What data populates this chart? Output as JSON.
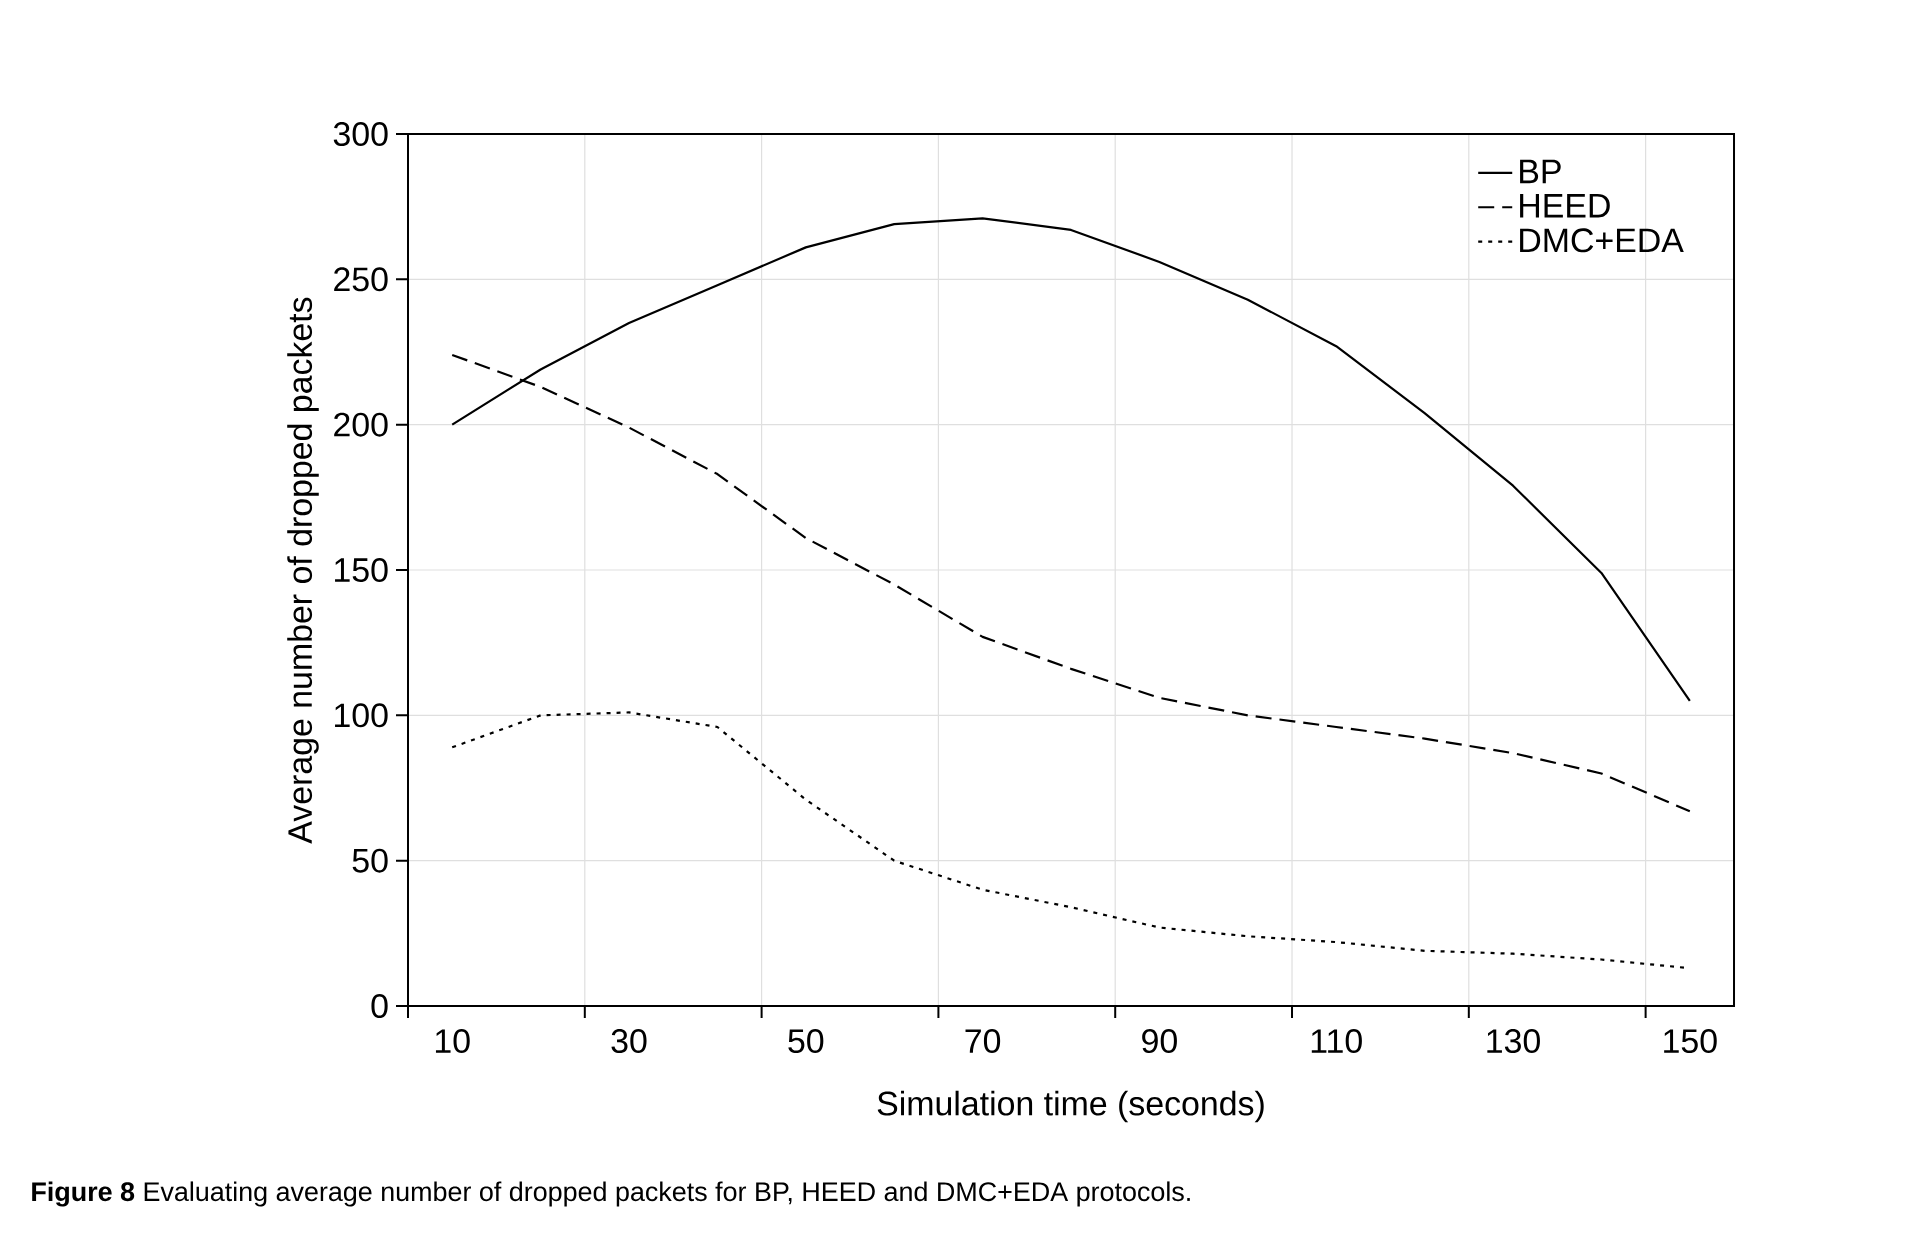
{
  "chart_data": {
    "type": "line",
    "xlabel": "Simulation time (seconds)",
    "ylabel": "Average number of dropped packets",
    "x": [
      10,
      20,
      30,
      40,
      50,
      60,
      70,
      80,
      90,
      100,
      110,
      120,
      130,
      140,
      150
    ],
    "series": [
      {
        "name": "BP",
        "color": "#000000",
        "line_style": "solid",
        "values": [
          200,
          219,
          235,
          248,
          261,
          269,
          271,
          267,
          256,
          243,
          227,
          204,
          179,
          149,
          105
        ]
      },
      {
        "name": "HEED",
        "color": "#000000",
        "line_style": "dashed",
        "values": [
          224,
          213,
          199,
          183,
          161,
          145,
          127,
          116,
          106,
          100,
          96,
          92,
          87,
          80,
          67
        ]
      },
      {
        "name": "DMC+EDA",
        "color": "#000000",
        "line_style": "dotted",
        "values": [
          89,
          100,
          101,
          96,
          71,
          50,
          40,
          34,
          27,
          24,
          22,
          19,
          18,
          16,
          13
        ]
      }
    ],
    "xlim": [
      5,
      155
    ],
    "xticks": [
      {
        "value": 5,
        "label": null
      },
      {
        "value": 25,
        "label": null
      },
      {
        "value": 45,
        "label": null
      },
      {
        "value": 65,
        "label": null
      },
      {
        "value": 85,
        "label": null
      },
      {
        "value": 105,
        "label": null
      },
      {
        "value": 125,
        "label": null
      },
      {
        "value": 145,
        "label": null
      },
      {
        "value": 10,
        "label": "10"
      },
      {
        "value": 30,
        "label": "30"
      },
      {
        "value": 50,
        "label": "50"
      },
      {
        "value": 70,
        "label": "70"
      },
      {
        "value": 90,
        "label": "90"
      },
      {
        "value": 110,
        "label": "110"
      },
      {
        "value": 130,
        "label": "130"
      },
      {
        "value": 150,
        "label": "150"
      }
    ],
    "ylim": [
      0,
      300
    ],
    "yticks": [
      0,
      50,
      100,
      150,
      200,
      250,
      300
    ],
    "grid": true,
    "legend": "top right",
    "marker": "none",
    "annotations": [
      "**Figure 8** Evaluating average number of dropped packets for BP, HEED and DMC+EDA protocols."
    ]
  }
}
